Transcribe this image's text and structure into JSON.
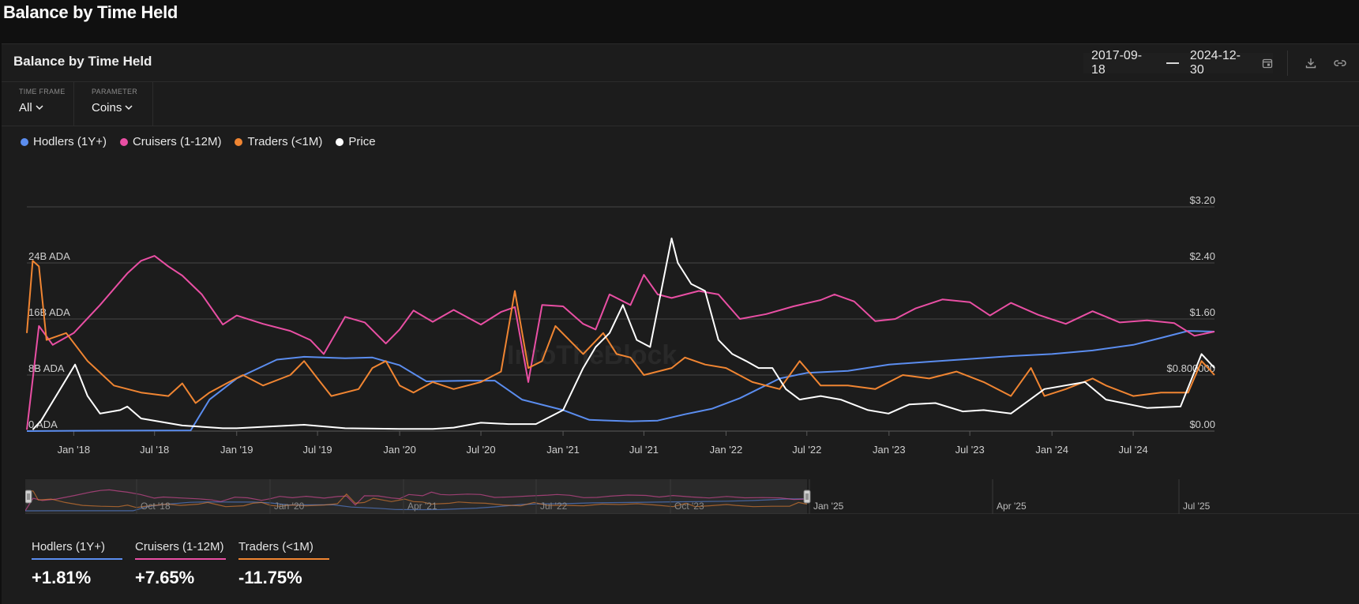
{
  "page_title": "Balance by Time Held",
  "card": {
    "title": "Balance by Time Held",
    "date_start": "2017-09-18",
    "date_end": "2024-12-30",
    "icons": [
      "calendar-icon",
      "download-icon",
      "link-icon"
    ]
  },
  "controls": {
    "time_frame": {
      "label": "TIME FRAME",
      "value": "All"
    },
    "parameter": {
      "label": "PARAMETER",
      "value": "Coins"
    }
  },
  "watermark": "IntoTheBlock",
  "chart_data": {
    "type": "line",
    "x_start": "2017-09-18",
    "x_end": "2024-12-30",
    "x_ticks": [
      "Jan '18",
      "Jul '18",
      "Jan '19",
      "Jul '19",
      "Jan '20",
      "Jul '20",
      "Jan '21",
      "Jul '21",
      "Jan '22",
      "Jul '22",
      "Jan '23",
      "Jul '23",
      "Jan '24",
      "Jul '24"
    ],
    "y_left": {
      "ticks": [
        "0 ADA",
        "8B ADA",
        "16B ADA",
        "24B ADA"
      ],
      "range": [
        0,
        32
      ]
    },
    "y_right": {
      "ticks": [
        "$0.00",
        "$0.800000",
        "$1.60",
        "$2.40",
        "$3.20"
      ],
      "range": [
        0,
        3.2
      ]
    },
    "grid": true,
    "legend": "top-left",
    "series": [
      {
        "name": "Hodlers (1Y+)",
        "color": "#5b8def",
        "axis": "left",
        "points": [
          [
            "2017-09-18",
            0
          ],
          [
            "2018-01-01",
            0.05
          ],
          [
            "2018-09-20",
            0.1
          ],
          [
            "2018-11-01",
            4.5
          ],
          [
            "2019-01-01",
            7.5
          ],
          [
            "2019-04-01",
            10.2
          ],
          [
            "2019-06-01",
            10.6
          ],
          [
            "2019-09-01",
            10.4
          ],
          [
            "2019-11-01",
            10.5
          ],
          [
            "2020-01-01",
            9.4
          ],
          [
            "2020-03-01",
            7.1
          ],
          [
            "2020-06-01",
            7.2
          ],
          [
            "2020-08-01",
            7.2
          ],
          [
            "2020-10-01",
            4.5
          ],
          [
            "2021-01-01",
            3.0
          ],
          [
            "2021-03-01",
            1.6
          ],
          [
            "2021-06-01",
            1.4
          ],
          [
            "2021-08-01",
            1.5
          ],
          [
            "2021-10-01",
            2.4
          ],
          [
            "2021-12-01",
            3.2
          ],
          [
            "2022-02-01",
            4.7
          ],
          [
            "2022-05-01",
            7.5
          ],
          [
            "2022-07-01",
            8.3
          ],
          [
            "2022-10-01",
            8.6
          ],
          [
            "2023-01-01",
            9.5
          ],
          [
            "2023-04-01",
            9.9
          ],
          [
            "2023-07-01",
            10.3
          ],
          [
            "2023-10-01",
            10.7
          ],
          [
            "2024-01-01",
            11.0
          ],
          [
            "2024-04-01",
            11.5
          ],
          [
            "2024-07-01",
            12.3
          ],
          [
            "2024-09-01",
            13.3
          ],
          [
            "2024-11-01",
            14.3
          ],
          [
            "2024-12-30",
            14.2
          ]
        ]
      },
      {
        "name": "Cruisers (1-12M)",
        "color": "#e94fa4",
        "axis": "left",
        "points": [
          [
            "2017-09-18",
            0.2
          ],
          [
            "2017-10-15",
            15.0
          ],
          [
            "2017-11-15",
            12.3
          ],
          [
            "2018-01-01",
            14.0
          ],
          [
            "2018-03-01",
            18.0
          ],
          [
            "2018-05-01",
            22.5
          ],
          [
            "2018-06-01",
            24.3
          ],
          [
            "2018-07-01",
            25.0
          ],
          [
            "2018-08-01",
            23.5
          ],
          [
            "2018-09-01",
            22.2
          ],
          [
            "2018-10-15",
            19.5
          ],
          [
            "2018-12-01",
            15.2
          ],
          [
            "2019-01-01",
            16.5
          ],
          [
            "2019-03-01",
            15.3
          ],
          [
            "2019-05-01",
            14.3
          ],
          [
            "2019-06-15",
            13.0
          ],
          [
            "2019-07-15",
            11.0
          ],
          [
            "2019-09-01",
            16.3
          ],
          [
            "2019-10-15",
            15.5
          ],
          [
            "2019-12-01",
            12.5
          ],
          [
            "2020-01-01",
            14.5
          ],
          [
            "2020-02-01",
            17.2
          ],
          [
            "2020-03-15",
            15.6
          ],
          [
            "2020-05-01",
            17.3
          ],
          [
            "2020-07-01",
            15.2
          ],
          [
            "2020-08-15",
            17.0
          ],
          [
            "2020-09-15",
            17.7
          ],
          [
            "2020-10-15",
            7.0
          ],
          [
            "2020-11-15",
            18.0
          ],
          [
            "2021-01-01",
            17.8
          ],
          [
            "2021-02-15",
            15.3
          ],
          [
            "2021-03-15",
            14.5
          ],
          [
            "2021-04-15",
            19.5
          ],
          [
            "2021-06-01",
            18.0
          ],
          [
            "2021-07-01",
            22.3
          ],
          [
            "2021-08-01",
            19.5
          ],
          [
            "2021-09-01",
            19.0
          ],
          [
            "2021-11-01",
            20.0
          ],
          [
            "2021-12-15",
            19.5
          ],
          [
            "2022-02-01",
            16.0
          ],
          [
            "2022-04-01",
            16.7
          ],
          [
            "2022-06-01",
            17.8
          ],
          [
            "2022-08-01",
            18.7
          ],
          [
            "2022-09-01",
            19.5
          ],
          [
            "2022-10-15",
            18.5
          ],
          [
            "2022-12-01",
            15.7
          ],
          [
            "2023-01-15",
            16.0
          ],
          [
            "2023-03-01",
            17.5
          ],
          [
            "2023-05-01",
            18.8
          ],
          [
            "2023-07-01",
            18.4
          ],
          [
            "2023-08-15",
            16.5
          ],
          [
            "2023-10-01",
            18.3
          ],
          [
            "2023-12-01",
            16.6
          ],
          [
            "2024-02-01",
            15.3
          ],
          [
            "2024-04-01",
            17.1
          ],
          [
            "2024-06-01",
            15.5
          ],
          [
            "2024-08-01",
            15.8
          ],
          [
            "2024-10-01",
            15.4
          ],
          [
            "2024-11-15",
            13.6
          ],
          [
            "2024-12-30",
            14.2
          ]
        ]
      },
      {
        "name": "Traders (<1M)",
        "color": "#f08532",
        "axis": "left",
        "points": [
          [
            "2017-09-18",
            14.0
          ],
          [
            "2017-10-01",
            24.3
          ],
          [
            "2017-10-15",
            23.5
          ],
          [
            "2017-11-01",
            13.0
          ],
          [
            "2017-12-15",
            14.0
          ],
          [
            "2018-02-01",
            10.0
          ],
          [
            "2018-04-01",
            6.5
          ],
          [
            "2018-06-01",
            5.5
          ],
          [
            "2018-08-01",
            5.0
          ],
          [
            "2018-09-01",
            6.8
          ],
          [
            "2018-10-01",
            4.0
          ],
          [
            "2018-11-01",
            5.5
          ],
          [
            "2018-12-15",
            7.0
          ],
          [
            "2019-01-15",
            8.0
          ],
          [
            "2019-03-01",
            6.5
          ],
          [
            "2019-05-01",
            8.0
          ],
          [
            "2019-06-01",
            10.0
          ],
          [
            "2019-07-01",
            7.5
          ],
          [
            "2019-08-01",
            5.0
          ],
          [
            "2019-10-01",
            6.0
          ],
          [
            "2019-11-01",
            9.0
          ],
          [
            "2019-12-01",
            10.0
          ],
          [
            "2020-01-01",
            6.5
          ],
          [
            "2020-02-01",
            5.5
          ],
          [
            "2020-03-15",
            7.0
          ],
          [
            "2020-05-01",
            6.0
          ],
          [
            "2020-07-01",
            7.0
          ],
          [
            "2020-08-15",
            8.5
          ],
          [
            "2020-09-15",
            20.0
          ],
          [
            "2020-10-15",
            9.0
          ],
          [
            "2020-11-15",
            10.0
          ],
          [
            "2020-12-15",
            15.0
          ],
          [
            "2021-02-15",
            11.0
          ],
          [
            "2021-04-01",
            14.0
          ],
          [
            "2021-05-01",
            11.0
          ],
          [
            "2021-06-01",
            10.5
          ],
          [
            "2021-07-01",
            8.0
          ],
          [
            "2021-09-01",
            9.0
          ],
          [
            "2021-10-01",
            10.5
          ],
          [
            "2021-11-15",
            9.5
          ],
          [
            "2022-01-01",
            9.0
          ],
          [
            "2022-03-01",
            7.0
          ],
          [
            "2022-05-01",
            6.0
          ],
          [
            "2022-06-15",
            10.0
          ],
          [
            "2022-08-01",
            6.5
          ],
          [
            "2022-10-01",
            6.5
          ],
          [
            "2022-12-01",
            6.0
          ],
          [
            "2023-02-01",
            8.0
          ],
          [
            "2023-04-01",
            7.5
          ],
          [
            "2023-06-01",
            8.5
          ],
          [
            "2023-08-01",
            7.0
          ],
          [
            "2023-10-01",
            5.0
          ],
          [
            "2023-11-15",
            9.0
          ],
          [
            "2023-12-15",
            5.0
          ],
          [
            "2024-02-01",
            6.0
          ],
          [
            "2024-04-01",
            7.5
          ],
          [
            "2024-05-01",
            6.5
          ],
          [
            "2024-07-01",
            5.0
          ],
          [
            "2024-09-01",
            5.5
          ],
          [
            "2024-11-01",
            5.5
          ],
          [
            "2024-12-01",
            10.0
          ],
          [
            "2024-12-30",
            8.0
          ]
        ]
      },
      {
        "name": "Price",
        "color": "#ffffff",
        "axis": "right",
        "points": [
          [
            "2017-10-01",
            0.02
          ],
          [
            "2017-10-20",
            0.15
          ],
          [
            "2018-01-04",
            0.95
          ],
          [
            "2018-02-01",
            0.5
          ],
          [
            "2018-03-01",
            0.25
          ],
          [
            "2018-04-15",
            0.3
          ],
          [
            "2018-05-01",
            0.35
          ],
          [
            "2018-06-01",
            0.18
          ],
          [
            "2018-09-01",
            0.08
          ],
          [
            "2018-12-01",
            0.04
          ],
          [
            "2019-01-01",
            0.04
          ],
          [
            "2019-06-01",
            0.09
          ],
          [
            "2019-09-01",
            0.04
          ],
          [
            "2020-01-01",
            0.03
          ],
          [
            "2020-03-15",
            0.03
          ],
          [
            "2020-05-01",
            0.05
          ],
          [
            "2020-07-01",
            0.12
          ],
          [
            "2020-09-01",
            0.1
          ],
          [
            "2020-11-01",
            0.1
          ],
          [
            "2021-01-01",
            0.3
          ],
          [
            "2021-02-15",
            0.9
          ],
          [
            "2021-03-15",
            1.2
          ],
          [
            "2021-04-15",
            1.4
          ],
          [
            "2021-05-15",
            1.8
          ],
          [
            "2021-06-15",
            1.3
          ],
          [
            "2021-07-15",
            1.2
          ],
          [
            "2021-09-01",
            2.75
          ],
          [
            "2021-09-15",
            2.4
          ],
          [
            "2021-10-15",
            2.1
          ],
          [
            "2021-11-15",
            2.0
          ],
          [
            "2021-12-15",
            1.3
          ],
          [
            "2022-01-15",
            1.1
          ],
          [
            "2022-02-15",
            1.0
          ],
          [
            "2022-03-15",
            0.9
          ],
          [
            "2022-04-15",
            0.9
          ],
          [
            "2022-05-15",
            0.6
          ],
          [
            "2022-06-15",
            0.45
          ],
          [
            "2022-08-01",
            0.5
          ],
          [
            "2022-09-15",
            0.45
          ],
          [
            "2022-11-15",
            0.3
          ],
          [
            "2022-12-31",
            0.25
          ],
          [
            "2023-02-15",
            0.38
          ],
          [
            "2023-04-15",
            0.4
          ],
          [
            "2023-06-15",
            0.28
          ],
          [
            "2023-08-01",
            0.3
          ],
          [
            "2023-10-01",
            0.25
          ],
          [
            "2023-12-15",
            0.6
          ],
          [
            "2024-03-15",
            0.7
          ],
          [
            "2024-05-01",
            0.45
          ],
          [
            "2024-08-01",
            0.33
          ],
          [
            "2024-10-15",
            0.35
          ],
          [
            "2024-12-01",
            1.1
          ],
          [
            "2024-12-30",
            0.9
          ]
        ]
      }
    ]
  },
  "navigator": {
    "labels": [
      "Oct '18",
      "Jan '20",
      "Apr '21",
      "Jul '22",
      "Oct '23",
      "Jan '25",
      "Apr '25",
      "Jul '25"
    ]
  },
  "stats": [
    {
      "label": "Hodlers (1Y+)",
      "value": "+1.81%",
      "color": "#5b8def"
    },
    {
      "label": "Cruisers (1-12M)",
      "value": "+7.65%",
      "color": "#e94fa4"
    },
    {
      "label": "Traders (<1M)",
      "value": "-11.75%",
      "color": "#f08532"
    }
  ]
}
